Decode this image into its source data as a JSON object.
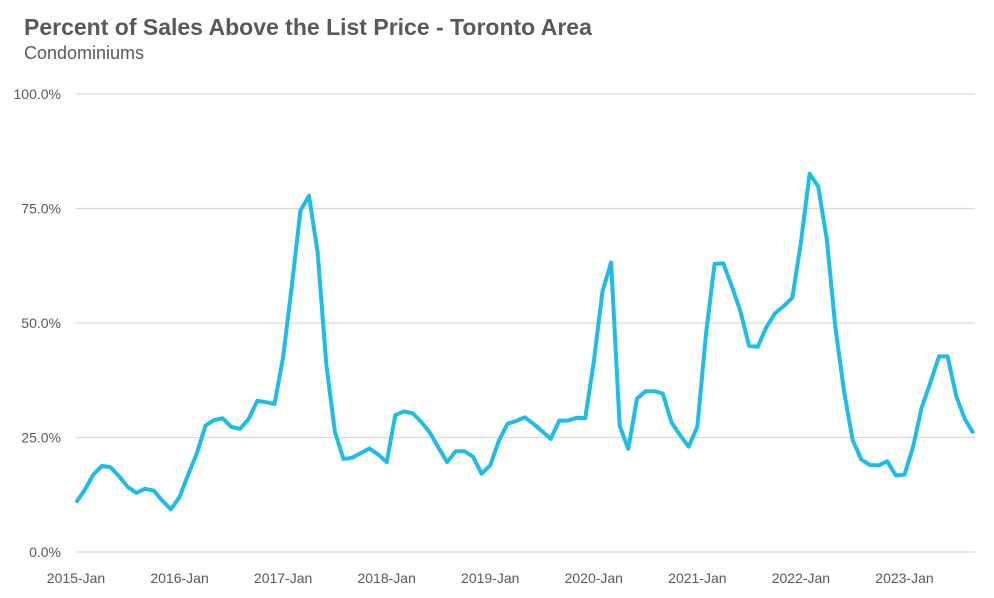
{
  "chart_data": {
    "type": "line",
    "title": "Percent of Sales Above the List Price - Toronto Area",
    "subtitle": "Condominiums",
    "xlabel": "",
    "ylabel": "",
    "ylim": [
      0,
      100
    ],
    "y_ticks": [
      "0.0%",
      "25.0%",
      "50.0%",
      "75.0%",
      "100.0%"
    ],
    "y_tick_values": [
      0,
      25,
      50,
      75,
      100
    ],
    "x_ticks": [
      "2015-Jan",
      "2016-Jan",
      "2017-Jan",
      "2018-Jan",
      "2019-Jan",
      "2020-Jan",
      "2021-Jan",
      "2022-Jan",
      "2023-Jan"
    ],
    "x_start": "2015-Jan",
    "grid": true,
    "legend": "none",
    "series": [
      {
        "color": "#1fbde6",
        "values": [
          10.8,
          13.5,
          16.9,
          18.8,
          18.5,
          16.5,
          14.2,
          12.9,
          13.8,
          13.4,
          11.2,
          9.3,
          12.0,
          16.9,
          21.5,
          27.6,
          28.8,
          29.2,
          27.3,
          26.9,
          29.0,
          33.0,
          32.7,
          32.3,
          42.5,
          58.0,
          74.5,
          77.8,
          65.5,
          41.0,
          26.2,
          20.3,
          20.6,
          21.6,
          22.6,
          21.3,
          19.6,
          29.9,
          30.7,
          30.3,
          28.4,
          26.1,
          22.8,
          19.6,
          22.0,
          22.0,
          20.8,
          17.1,
          18.9,
          24.3,
          28.0,
          28.6,
          29.4,
          28.0,
          26.4,
          24.7,
          28.7,
          28.7,
          29.3,
          29.2,
          41.5,
          56.8,
          63.2,
          27.5,
          22.5,
          33.5,
          35.1,
          35.1,
          34.6,
          28.3,
          25.5,
          23.0,
          27.4,
          47.6,
          62.9,
          63.0,
          58.0,
          52.5,
          45.0,
          44.8,
          49.1,
          52.1,
          53.7,
          55.5,
          67.5,
          82.6,
          79.8,
          68.3,
          49.0,
          35.0,
          24.4,
          20.2,
          19.0,
          18.9,
          19.8,
          16.7,
          16.9,
          23.0,
          31.5,
          37.0,
          42.7,
          42.7,
          34.0,
          29.0,
          25.9
        ]
      }
    ]
  }
}
